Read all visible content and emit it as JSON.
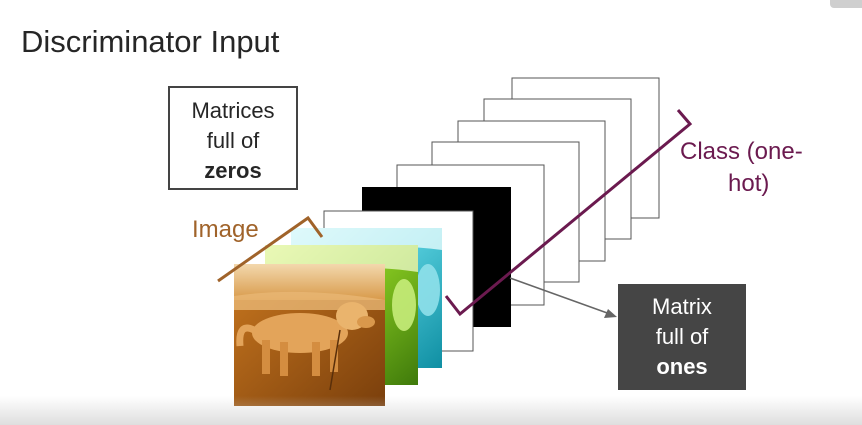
{
  "slide": {
    "title": "Discriminator Input",
    "zeros_box": {
      "line1": "Matrices",
      "line2": "full of",
      "line3": "zeros"
    },
    "ones_box": {
      "line1": "Matrix",
      "line2": "full of",
      "line3": "ones"
    },
    "image_label": "Image",
    "class_label": {
      "line1": "Class (one-",
      "line2": "hot)"
    }
  },
  "colors": {
    "image_bracket": "#a0632a",
    "class_bracket": "#6b1a4f",
    "ones_box": "#454545",
    "black_matrix": "#000000"
  }
}
